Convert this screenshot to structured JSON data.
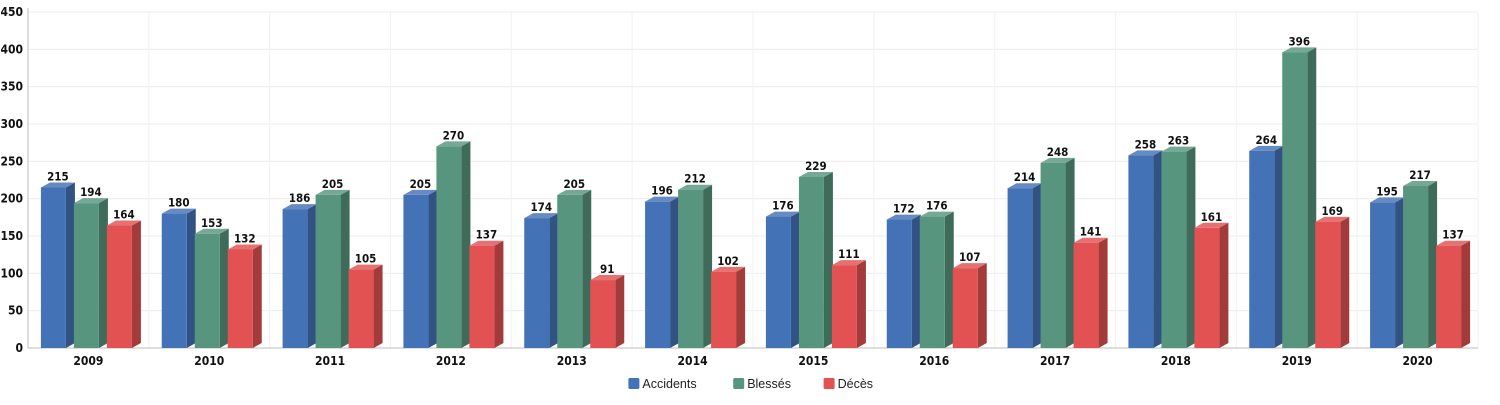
{
  "chart_data": {
    "type": "bar",
    "title": "",
    "xlabel": "",
    "ylabel": "",
    "ylim": [
      0,
      450
    ],
    "yticks": [
      0,
      50,
      100,
      150,
      200,
      250,
      300,
      350,
      400,
      450
    ],
    "grid": true,
    "legend_position": "bottom-center",
    "categories": [
      "2009",
      "2010",
      "2011",
      "2012",
      "2013",
      "2014",
      "2015",
      "2016",
      "2017",
      "2018",
      "2019",
      "2020"
    ],
    "series": [
      {
        "name": "Accidents",
        "color": "#4472b6",
        "values": [
          215,
          180,
          186,
          205,
          174,
          196,
          176,
          172,
          214,
          258,
          264,
          195
        ]
      },
      {
        "name": "Blessés",
        "color": "#57957f",
        "values": [
          194,
          153,
          205,
          270,
          205,
          212,
          229,
          176,
          248,
          263,
          396,
          217
        ]
      },
      {
        "name": "Décès",
        "color": "#e25252",
        "values": [
          164,
          132,
          105,
          137,
          91,
          102,
          111,
          107,
          141,
          161,
          169,
          137
        ]
      }
    ]
  }
}
